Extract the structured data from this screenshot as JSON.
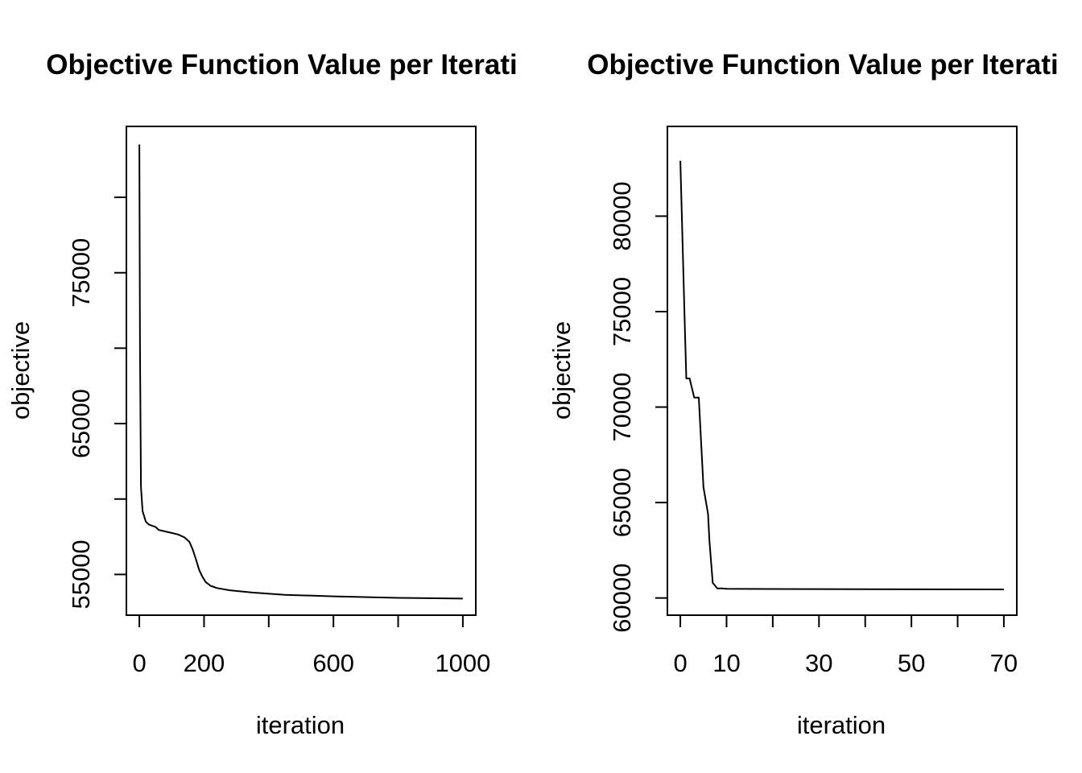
{
  "chart_data": [
    {
      "type": "line",
      "title": "Objective Function Value per Iterati",
      "xlabel": "iteration",
      "ylabel": "objective",
      "xlim": [
        -40,
        1040
      ],
      "ylim": [
        52300,
        84700
      ],
      "x_ticks": [
        0,
        200,
        400,
        600,
        800,
        1000
      ],
      "x_tick_labels": [
        "0",
        "200",
        "",
        "600",
        "",
        "1000"
      ],
      "y_ticks": [
        55000,
        60000,
        65000,
        70000,
        75000,
        80000
      ],
      "y_tick_labels": [
        "55000",
        "",
        "65000",
        "",
        "75000",
        ""
      ],
      "grid": false,
      "series": [
        {
          "x": [
            0,
            2,
            5,
            10,
            20,
            30,
            50,
            60,
            80,
            100,
            120,
            140,
            155,
            165,
            175,
            185,
            195,
            205,
            220,
            240,
            280,
            350,
            450,
            600,
            800,
            1000
          ],
          "y": [
            83500,
            70000,
            60800,
            59200,
            58500,
            58300,
            58150,
            57950,
            57850,
            57750,
            57650,
            57450,
            57150,
            56650,
            56000,
            55300,
            54850,
            54500,
            54250,
            54100,
            53950,
            53800,
            53650,
            53550,
            53450,
            53400
          ]
        }
      ]
    },
    {
      "type": "line",
      "title": "Objective Function Value per Iterati",
      "xlabel": "iteration",
      "ylabel": "objective",
      "xlim": [
        -2.8,
        72.8
      ],
      "ylim": [
        59100,
        84700
      ],
      "x_ticks": [
        0,
        10,
        20,
        30,
        40,
        50,
        60,
        70
      ],
      "x_tick_labels": [
        "0",
        "10",
        "",
        "30",
        "",
        "50",
        "",
        "70"
      ],
      "y_ticks": [
        60000,
        65000,
        70000,
        75000,
        80000
      ],
      "y_tick_labels": [
        "60000",
        "65000",
        "70000",
        "75000",
        "80000"
      ],
      "grid": false,
      "series": [
        {
          "x": [
            0,
            1,
            1.3,
            2,
            3,
            3.3,
            4,
            5,
            6,
            6.3,
            7,
            8,
            9,
            10,
            20,
            40,
            70
          ],
          "y": [
            82900,
            74000,
            71500,
            71500,
            70500,
            70500,
            70500,
            65800,
            64400,
            63000,
            60800,
            60500,
            60500,
            60480,
            60470,
            60460,
            60450
          ]
        }
      ]
    }
  ]
}
